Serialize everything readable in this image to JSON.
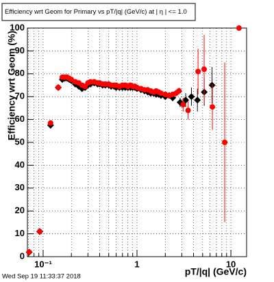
{
  "chart_data": {
    "type": "scatter",
    "title": "Efficiency wrt Geom for Primary vs pT/|q| (GeV/c) at | η | <= 1.0",
    "x_label": "pT/|q| (GeV/c)",
    "y_label": "Efficiency wrt Geom (%)",
    "timestamp": "Wed Sep 19 11:33:37 2018",
    "xlog": true,
    "xlim": [
      0.068,
      14.7
    ],
    "ylim": [
      0,
      100
    ],
    "xticks": [
      {
        "value": 0.1,
        "label": "10⁻¹"
      },
      1,
      10
    ],
    "xminor_ticks": [
      0.07,
      0.08,
      0.09,
      0.2,
      0.3,
      0.4,
      0.5,
      0.6,
      0.7,
      0.8,
      0.9,
      2,
      3,
      4,
      5,
      6,
      7,
      8,
      9
    ],
    "yticks": [
      0,
      10,
      20,
      30,
      40,
      50,
      60,
      70,
      80,
      90,
      100
    ],
    "grid": true,
    "series": [
      {
        "color": "#000000",
        "marker": "diamond",
        "x": [
          0.071,
          0.092,
          0.12,
          0.145,
          0.16,
          0.17,
          0.18,
          0.19,
          0.2,
          0.22,
          0.24,
          0.26,
          0.28,
          0.3,
          0.32,
          0.35,
          0.38,
          0.4,
          0.43,
          0.46,
          0.5,
          0.53,
          0.57,
          0.6,
          0.65,
          0.7,
          0.75,
          0.8,
          0.85,
          0.9,
          0.95,
          1.0,
          1.1,
          1.2,
          1.3,
          1.4,
          1.5,
          1.6,
          1.7,
          1.8,
          2.0,
          2.2,
          2.4,
          2.88,
          3.3,
          3.8,
          4.4,
          5.2,
          6.3
        ],
        "values": [
          2,
          11,
          57.5,
          74,
          77.5,
          78,
          78,
          77.5,
          77,
          75.5,
          74.5,
          73.5,
          74,
          75,
          75.5,
          76,
          75.5,
          75.5,
          75,
          75,
          75,
          74.5,
          74.5,
          74,
          74,
          74,
          74,
          74,
          74,
          74,
          74,
          73.5,
          73,
          72.5,
          72,
          71.5,
          71.5,
          71,
          71,
          70.5,
          70,
          70.5,
          69.5,
          67.5,
          68.5,
          70,
          68.5,
          72,
          75
        ],
        "errors": [
          0.5,
          1,
          1,
          1,
          0.5,
          0.5,
          0.5,
          0.5,
          0.5,
          0.5,
          0.5,
          0.5,
          0.5,
          0.5,
          0.5,
          0.5,
          0.5,
          0.5,
          0.5,
          0.5,
          0.5,
          0.5,
          0.5,
          0.5,
          0.5,
          0.5,
          0.5,
          0.5,
          0.5,
          0.5,
          0.5,
          0.5,
          0.5,
          0.5,
          0.5,
          0.5,
          0.5,
          1,
          1,
          1,
          1,
          1,
          1.5,
          2,
          3,
          4,
          5,
          6,
          8
        ]
      },
      {
        "color": "#ff0000",
        "marker": "circle",
        "x": [
          0.071,
          0.092,
          0.12,
          0.145,
          0.16,
          0.17,
          0.18,
          0.19,
          0.2,
          0.22,
          0.24,
          0.26,
          0.28,
          0.3,
          0.32,
          0.35,
          0.38,
          0.4,
          0.43,
          0.46,
          0.5,
          0.53,
          0.57,
          0.6,
          0.65,
          0.7,
          0.75,
          0.8,
          0.85,
          0.9,
          0.95,
          1.0,
          1.1,
          1.2,
          1.3,
          1.4,
          1.5,
          1.6,
          1.7,
          1.8,
          2.0,
          2.2,
          2.4,
          2.6,
          2.8,
          3.1,
          3.5,
          4.47,
          5.19,
          6.35,
          8.6,
          12.2
        ],
        "values": [
          2,
          11,
          58.5,
          74,
          78.5,
          78.5,
          78.5,
          78,
          77.5,
          76.5,
          76,
          75,
          74.5,
          76,
          76.5,
          76.5,
          76,
          76,
          75.5,
          75.5,
          75.5,
          75,
          75,
          75,
          74.5,
          75,
          75,
          74.5,
          75,
          74.5,
          74.5,
          74,
          73.5,
          73,
          73,
          72.5,
          72,
          72.5,
          72,
          71.5,
          71,
          70.5,
          71,
          71.5,
          72.5,
          66.5,
          64,
          81,
          82,
          65.5,
          50,
          100
        ],
        "errors": [
          0.5,
          1,
          1,
          1,
          0.5,
          0.5,
          0.5,
          0.5,
          0.5,
          0.5,
          0.5,
          0.5,
          0.5,
          0.5,
          0.5,
          0.5,
          0.5,
          0.5,
          0.5,
          0.5,
          0.5,
          0.5,
          0.5,
          0.5,
          0.5,
          0.5,
          0.5,
          0.5,
          0.5,
          0.5,
          0.5,
          0.5,
          0.5,
          0.5,
          0.5,
          0.5,
          0.5,
          1,
          1,
          1,
          1,
          1,
          1,
          1.5,
          1.5,
          3,
          4,
          10,
          15,
          10,
          35,
          0
        ]
      }
    ]
  }
}
